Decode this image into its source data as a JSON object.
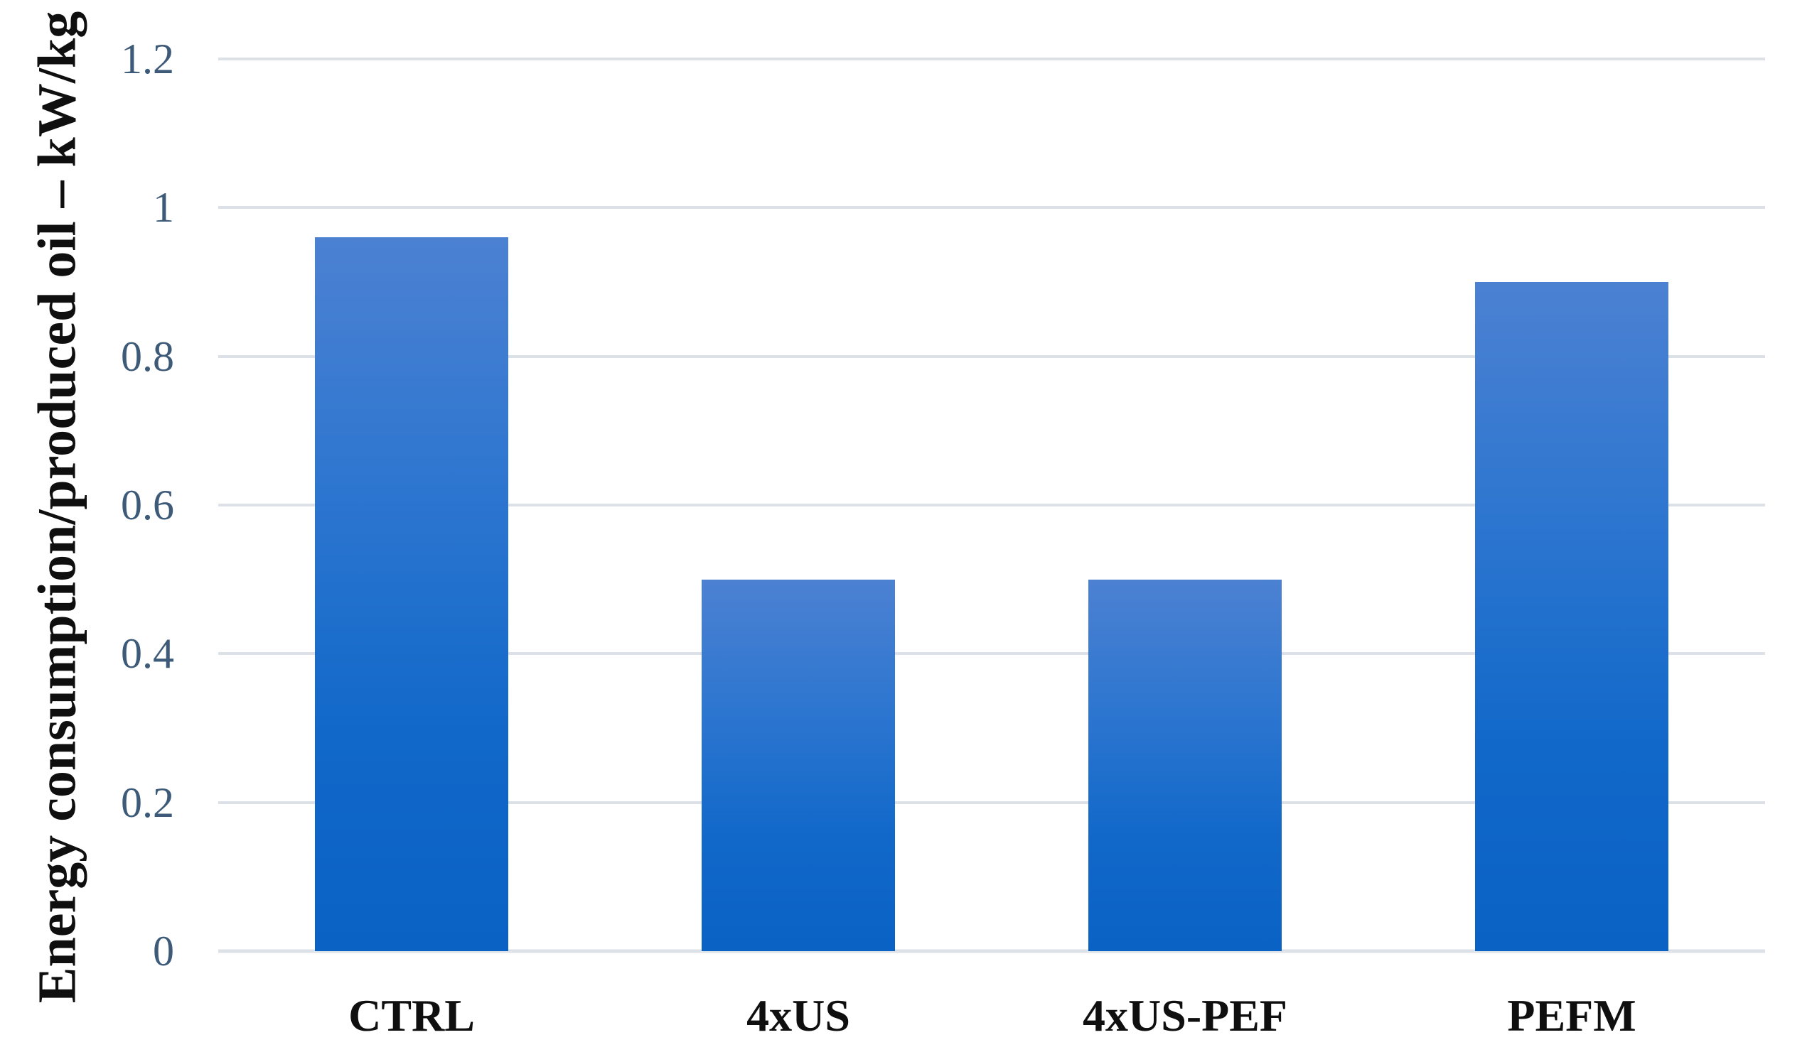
{
  "chart_data": {
    "type": "bar",
    "categories": [
      "CTRL",
      "4xUS",
      "4xUS-PEF",
      "PEFM"
    ],
    "values": [
      0.96,
      0.5,
      0.5,
      0.9
    ],
    "title": "",
    "xlabel": "",
    "ylabel": "Energy consumption/produced oil – kW/kg",
    "ylim": [
      0,
      1.2
    ],
    "yticks": [
      0,
      0.2,
      0.4,
      0.6,
      0.8,
      1,
      1.2
    ],
    "ytick_labels": [
      "0",
      "0.2",
      "0.4",
      "0.6",
      "0.8",
      "1",
      "1.2"
    ],
    "grid": "horizontal gridlines on",
    "legend": "none",
    "series_count": 1
  },
  "colors": {
    "bar_gradient_top": "#4c81d2",
    "bar_gradient_bottom": "#0a62c5",
    "gridline": "#dce1e8",
    "tick_label": "#3d5a78",
    "category_label": "#0f0f0f",
    "axis_title": "#0f0f0f",
    "background": "#ffffff"
  }
}
